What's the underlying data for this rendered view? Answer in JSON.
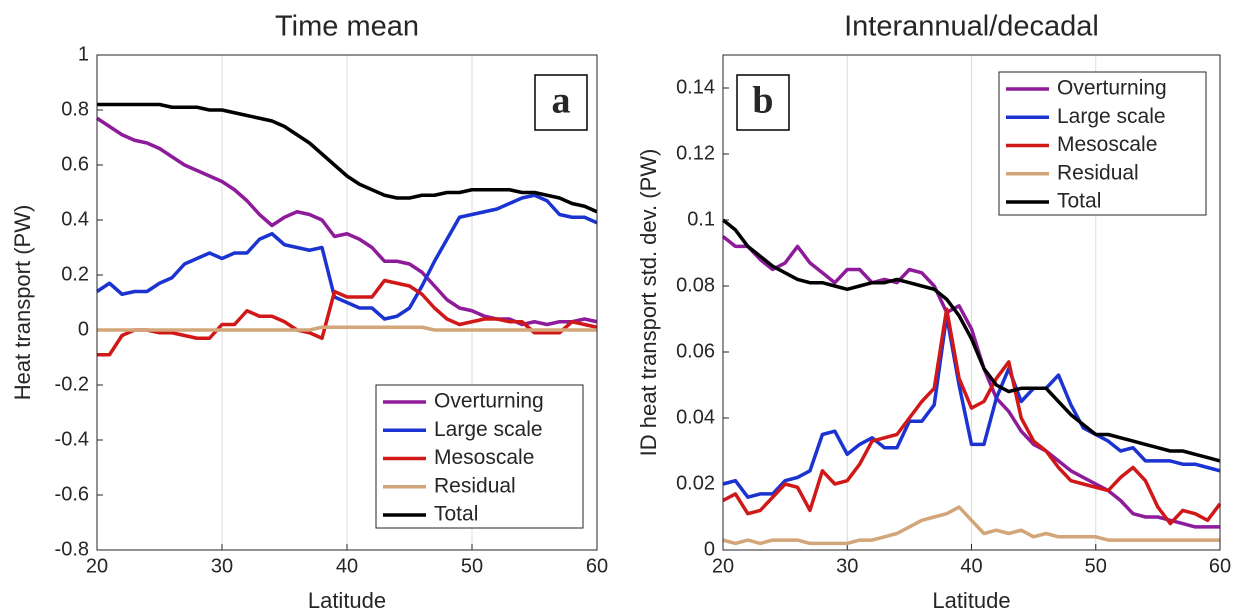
{
  "chart_data": [
    {
      "type": "line",
      "title": "Time mean",
      "panel_label": "a",
      "xlabel": "Latitude",
      "ylabel": "Heat transport (PW)",
      "x": [
        20,
        21,
        22,
        23,
        24,
        25,
        26,
        27,
        28,
        29,
        30,
        31,
        32,
        33,
        34,
        35,
        36,
        37,
        38,
        39,
        40,
        41,
        42,
        43,
        44,
        45,
        46,
        47,
        48,
        49,
        50,
        51,
        52,
        53,
        54,
        55,
        56,
        57,
        58,
        59,
        60
      ],
      "xlim": [
        20,
        60
      ],
      "xticks": [
        20,
        30,
        40,
        50,
        60
      ],
      "ylim": [
        -0.8,
        1
      ],
      "yticks": [
        -0.8,
        -0.6,
        -0.4,
        -0.2,
        0,
        0.2,
        0.4,
        0.6,
        0.8,
        1
      ],
      "xgrid": true,
      "legend": "lower right",
      "series": [
        {
          "name": "Overturning",
          "color": "#8e1b9a",
          "values": [
            0.77,
            0.74,
            0.71,
            0.69,
            0.68,
            0.66,
            0.63,
            0.6,
            0.58,
            0.56,
            0.54,
            0.51,
            0.47,
            0.42,
            0.38,
            0.41,
            0.43,
            0.42,
            0.4,
            0.34,
            0.35,
            0.33,
            0.3,
            0.25,
            0.25,
            0.24,
            0.21,
            0.16,
            0.11,
            0.08,
            0.07,
            0.05,
            0.04,
            0.04,
            0.02,
            0.03,
            0.02,
            0.03,
            0.03,
            0.04,
            0.03
          ]
        },
        {
          "name": "Large scale",
          "color": "#1a33d1",
          "values": [
            0.14,
            0.17,
            0.13,
            0.14,
            0.14,
            0.17,
            0.19,
            0.24,
            0.26,
            0.28,
            0.26,
            0.28,
            0.28,
            0.33,
            0.35,
            0.31,
            0.3,
            0.29,
            0.3,
            0.12,
            0.1,
            0.08,
            0.08,
            0.04,
            0.05,
            0.08,
            0.16,
            0.25,
            0.33,
            0.41,
            0.42,
            0.43,
            0.44,
            0.46,
            0.48,
            0.49,
            0.47,
            0.42,
            0.41,
            0.41,
            0.39
          ]
        },
        {
          "name": "Mesoscale",
          "color": "#d01818",
          "values": [
            -0.09,
            -0.09,
            -0.02,
            0,
            0,
            -0.01,
            -0.01,
            -0.02,
            -0.03,
            -0.03,
            0.02,
            0.02,
            0.07,
            0.05,
            0.05,
            0.03,
            0,
            -0.01,
            -0.03,
            0.14,
            0.12,
            0.12,
            0.12,
            0.18,
            0.17,
            0.16,
            0.13,
            0.08,
            0.04,
            0.02,
            0.03,
            0.04,
            0.04,
            0.03,
            0.03,
            -0.01,
            -0.01,
            -0.01,
            0.03,
            0.02,
            0.01
          ]
        },
        {
          "name": "Residual",
          "color": "#d2a679",
          "values": [
            0,
            0,
            0,
            0,
            0,
            0,
            0,
            0,
            0,
            0,
            0,
            0,
            0,
            0,
            0,
            0,
            0,
            0,
            0.01,
            0.01,
            0.01,
            0.01,
            0.01,
            0.01,
            0.01,
            0.01,
            0.01,
            0,
            0,
            0,
            0,
            0,
            0,
            0,
            0,
            0,
            0,
            0,
            0,
            0,
            0
          ]
        },
        {
          "name": "Total",
          "color": "#000000",
          "values": [
            0.82,
            0.82,
            0.82,
            0.82,
            0.82,
            0.82,
            0.81,
            0.81,
            0.81,
            0.8,
            0.8,
            0.79,
            0.78,
            0.77,
            0.76,
            0.74,
            0.71,
            0.68,
            0.64,
            0.6,
            0.56,
            0.53,
            0.51,
            0.49,
            0.48,
            0.48,
            0.49,
            0.49,
            0.5,
            0.5,
            0.51,
            0.51,
            0.51,
            0.51,
            0.5,
            0.5,
            0.49,
            0.48,
            0.46,
            0.45,
            0.43
          ]
        }
      ]
    },
    {
      "type": "line",
      "title": "Interannual/decadal",
      "panel_label": "b",
      "xlabel": "Latitude",
      "ylabel": "ID heat transport std. dev. (PW)",
      "x": [
        20,
        21,
        22,
        23,
        24,
        25,
        26,
        27,
        28,
        29,
        30,
        31,
        32,
        33,
        34,
        35,
        36,
        37,
        38,
        39,
        40,
        41,
        42,
        43,
        44,
        45,
        46,
        47,
        48,
        49,
        50,
        51,
        52,
        53,
        54,
        55,
        56,
        57,
        58,
        59,
        60
      ],
      "xlim": [
        20,
        60
      ],
      "xticks": [
        20,
        30,
        40,
        50,
        60
      ],
      "ylim": [
        0,
        0.15
      ],
      "yticks": [
        0,
        0.02,
        0.04,
        0.06,
        0.08,
        0.1,
        0.12,
        0.14
      ],
      "xgrid": true,
      "legend": "upper right",
      "series": [
        {
          "name": "Overturning",
          "color": "#8e1b9a",
          "values": [
            0.095,
            0.092,
            0.092,
            0.088,
            0.085,
            0.087,
            0.092,
            0.087,
            0.084,
            0.081,
            0.085,
            0.085,
            0.081,
            0.082,
            0.081,
            0.085,
            0.084,
            0.08,
            0.072,
            0.074,
            0.067,
            0.055,
            0.046,
            0.042,
            0.036,
            0.032,
            0.03,
            0.027,
            0.024,
            0.022,
            0.02,
            0.018,
            0.015,
            0.011,
            0.01,
            0.01,
            0.009,
            0.008,
            0.007,
            0.007,
            0.007
          ]
        },
        {
          "name": "Large scale",
          "color": "#1a33d1",
          "values": [
            0.02,
            0.021,
            0.016,
            0.017,
            0.017,
            0.021,
            0.022,
            0.024,
            0.035,
            0.036,
            0.029,
            0.032,
            0.034,
            0.031,
            0.031,
            0.039,
            0.039,
            0.044,
            0.071,
            0.05,
            0.032,
            0.032,
            0.046,
            0.055,
            0.045,
            0.049,
            0.049,
            0.053,
            0.044,
            0.037,
            0.035,
            0.033,
            0.03,
            0.031,
            0.027,
            0.027,
            0.027,
            0.026,
            0.026,
            0.025,
            0.024
          ]
        },
        {
          "name": "Mesoscale",
          "color": "#d01818",
          "values": [
            0.015,
            0.017,
            0.011,
            0.012,
            0.016,
            0.02,
            0.019,
            0.012,
            0.024,
            0.02,
            0.021,
            0.026,
            0.033,
            0.034,
            0.035,
            0.04,
            0.045,
            0.049,
            0.073,
            0.052,
            0.043,
            0.045,
            0.052,
            0.057,
            0.04,
            0.033,
            0.03,
            0.025,
            0.021,
            0.02,
            0.019,
            0.018,
            0.022,
            0.025,
            0.021,
            0.013,
            0.008,
            0.012,
            0.011,
            0.009,
            0.014
          ]
        },
        {
          "name": "Residual",
          "color": "#d2a679",
          "values": [
            0.003,
            0.002,
            0.003,
            0.002,
            0.003,
            0.003,
            0.003,
            0.002,
            0.002,
            0.002,
            0.002,
            0.003,
            0.003,
            0.004,
            0.005,
            0.007,
            0.009,
            0.01,
            0.011,
            0.013,
            0.009,
            0.005,
            0.006,
            0.005,
            0.006,
            0.004,
            0.005,
            0.004,
            0.004,
            0.004,
            0.004,
            0.003,
            0.003,
            0.003,
            0.003,
            0.003,
            0.003,
            0.003,
            0.003,
            0.003,
            0.003
          ]
        },
        {
          "name": "Total",
          "color": "#000000",
          "values": [
            0.1,
            0.097,
            0.092,
            0.089,
            0.086,
            0.084,
            0.082,
            0.081,
            0.081,
            0.08,
            0.079,
            0.08,
            0.081,
            0.081,
            0.082,
            0.081,
            0.08,
            0.079,
            0.076,
            0.071,
            0.064,
            0.055,
            0.05,
            0.048,
            0.049,
            0.049,
            0.049,
            0.045,
            0.041,
            0.038,
            0.035,
            0.035,
            0.034,
            0.033,
            0.032,
            0.031,
            0.03,
            0.03,
            0.029,
            0.028,
            0.027
          ]
        }
      ]
    }
  ]
}
